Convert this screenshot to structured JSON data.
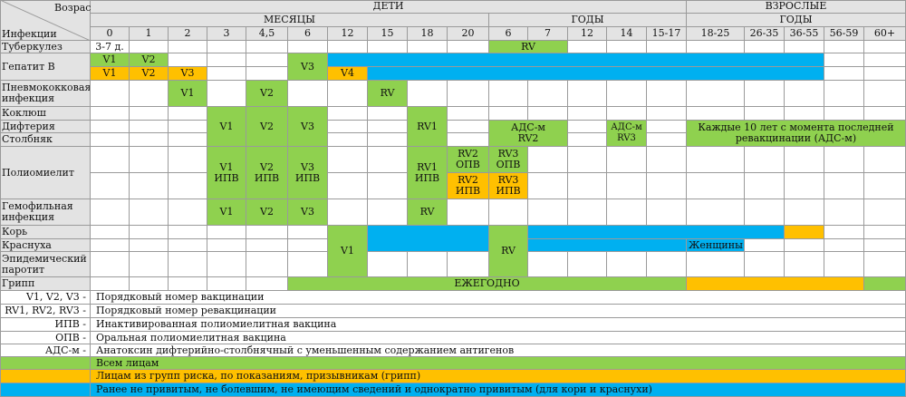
{
  "header": {
    "age_label": "Возраст",
    "infections_label": "Инфекции",
    "children": "ДЕТИ",
    "adults": "ВЗРОСЛЫЕ",
    "months": "МЕСЯЦЫ",
    "years": "ГОДЫ",
    "adult_years": "ГОДЫ",
    "columns": [
      "0",
      "1",
      "2",
      "3",
      "4,5",
      "6",
      "12",
      "15",
      "18",
      "20",
      "6",
      "7",
      "12",
      "14",
      "15-17",
      "18-25",
      "26-35",
      "36-55",
      "56-59",
      "60+"
    ]
  },
  "rows": [
    "Туберкулез",
    "Гепатит B",
    "Пневмококковая\nинфекция",
    "Коклюш",
    "Дифтерия",
    "Столбняк",
    "Полиомиелит",
    "Гемофильная\nинфекция",
    "Корь",
    "Краснуха",
    "Эпидемический\nпаротит",
    "Грипп"
  ],
  "cells": {
    "tb_0": "3-7 д.",
    "tb_rv": "RV",
    "hepb_v1": "V1",
    "hepb_v2": "V2",
    "hepb_v3": "V3",
    "hepb_r_v1": "V1",
    "hepb_r_v2": "V2",
    "hepb_r_v3": "V3",
    "hepb_r_v4": "V4",
    "pneu_v1": "V1",
    "pneu_v2": "V2",
    "pneu_rv": "RV",
    "dtp_v1": "V1",
    "dtp_v2": "V2",
    "dtp_v3": "V3",
    "dtp_rv1": "RV1",
    "ads_rv2": "АДС-м\nRV2",
    "ads_rv3": "АДС-м\nRV3",
    "ads_adult": "Каждые 10 лет с момента последней\nревакцинации (АДС-м)",
    "polio_v1": "V1\nИПВ",
    "polio_v2": "V2\nИПВ",
    "polio_v3": "V3\nИПВ",
    "polio_rv1": "RV1\nИПВ",
    "polio_rv2_opv": "RV2\nОПВ",
    "polio_rv3_opv": "RV3\nОПВ",
    "polio_rv2_ipv": "RV2\nИПВ",
    "polio_rv3_ipv": "RV3\nИПВ",
    "hib_v1": "V1",
    "hib_v2": "V2",
    "hib_v3": "V3",
    "hib_rv": "RV",
    "mmr_v1": "V1",
    "mmr_rv": "RV",
    "women": "Женщины",
    "flu_annual": "ЕЖЕГОДНО"
  },
  "legend": [
    {
      "key": "V1, V2, V3 -",
      "text": "Порядковый номер вакцинации"
    },
    {
      "key": "RV1, RV2, RV3 -",
      "text": "Порядковый номер ревакцинации"
    },
    {
      "key": "ИПВ -",
      "text": "Инактивированная полиомиелитная вакцина"
    },
    {
      "key": "ОПВ -",
      "text": "Оральная полиомиелитная вакцина"
    },
    {
      "key": "АДС-м -",
      "text": "Анатоксин дифтерийно-столбнячный с уменьшенным содержанием антигенов"
    }
  ],
  "color_legend": [
    {
      "color": "#8fd14f",
      "text": "Всем лицам"
    },
    {
      "color": "#ffc000",
      "text": "Лицам из групп риска, по показаниям, призывникам (грипп)"
    },
    {
      "color": "#00b0f0",
      "text": "Ранее не привитым, не болевшим, не имеющим сведений и однократно привитым (для кори и краснухи)"
    }
  ]
}
